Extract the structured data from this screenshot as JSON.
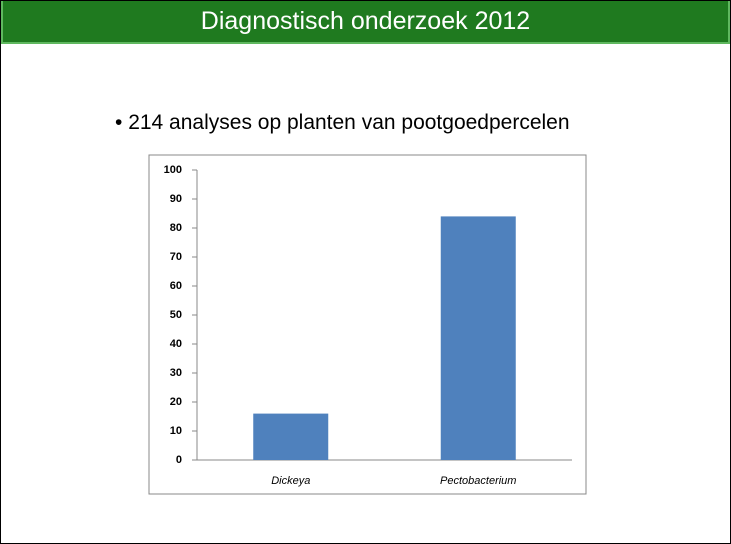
{
  "slide_title": "Diagnostisch onderzoek 2012",
  "bullet": "214 analyses op planten van pootgoedpercelen",
  "chart_data": {
    "type": "bar",
    "categories": [
      "Dickeya",
      "Pectobacterium"
    ],
    "values": [
      16,
      84
    ],
    "color": "#4f81bd",
    "ylim": [
      0,
      100
    ],
    "yticks": [
      0,
      10,
      20,
      30,
      40,
      50,
      60,
      70,
      80,
      90,
      100
    ],
    "grid": false
  }
}
